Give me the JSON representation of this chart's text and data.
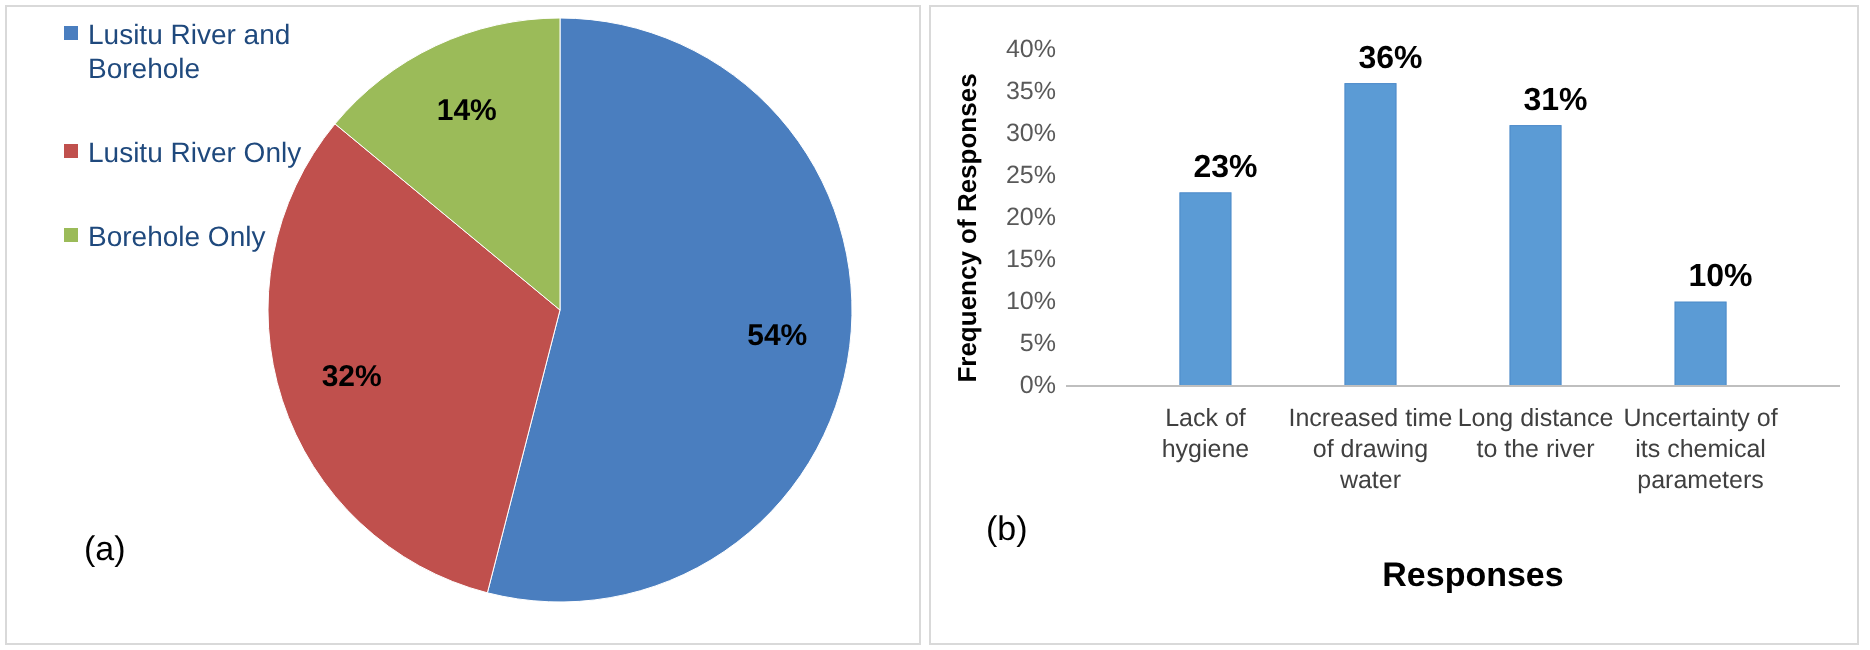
{
  "chart_data": [
    {
      "type": "pie",
      "categories": [
        "Lusitu River and Borehole",
        "Lusitu River Only",
        "Borehole Only"
      ],
      "values": [
        54,
        32,
        14
      ],
      "colors": [
        "#4a7ebf",
        "#c0504d",
        "#9bbb59"
      ],
      "value_labels": [
        "54%",
        "32%",
        "14%"
      ],
      "legend": "top left",
      "annotations": [
        "(a)"
      ]
    },
    {
      "type": "bar",
      "categories": [
        "Lack of hygiene",
        "Increased time of drawing water",
        "Long distance to the river",
        "Uncertainty of its chemical parameters"
      ],
      "values": [
        23,
        36,
        31,
        10
      ],
      "color": "#5b9bd5",
      "value_labels": [
        "23%",
        "36%",
        "31%",
        "10%"
      ],
      "xlabel": "Responses",
      "ylabel": "Frequency of Responses",
      "ylim": [
        0,
        40
      ],
      "yticks": [
        {
          "value": 0,
          "label": "0%"
        },
        {
          "value": 5,
          "label": "5%"
        },
        {
          "value": 10,
          "label": "10%"
        },
        {
          "value": 15,
          "label": "15%"
        },
        {
          "value": 20,
          "label": "20%"
        },
        {
          "value": 25,
          "label": "25%"
        },
        {
          "value": 30,
          "label": "30%"
        },
        {
          "value": 35,
          "label": "35%"
        },
        {
          "value": 40,
          "label": "40%"
        }
      ],
      "grid": false,
      "annotations": [
        "(b)"
      ]
    }
  ]
}
